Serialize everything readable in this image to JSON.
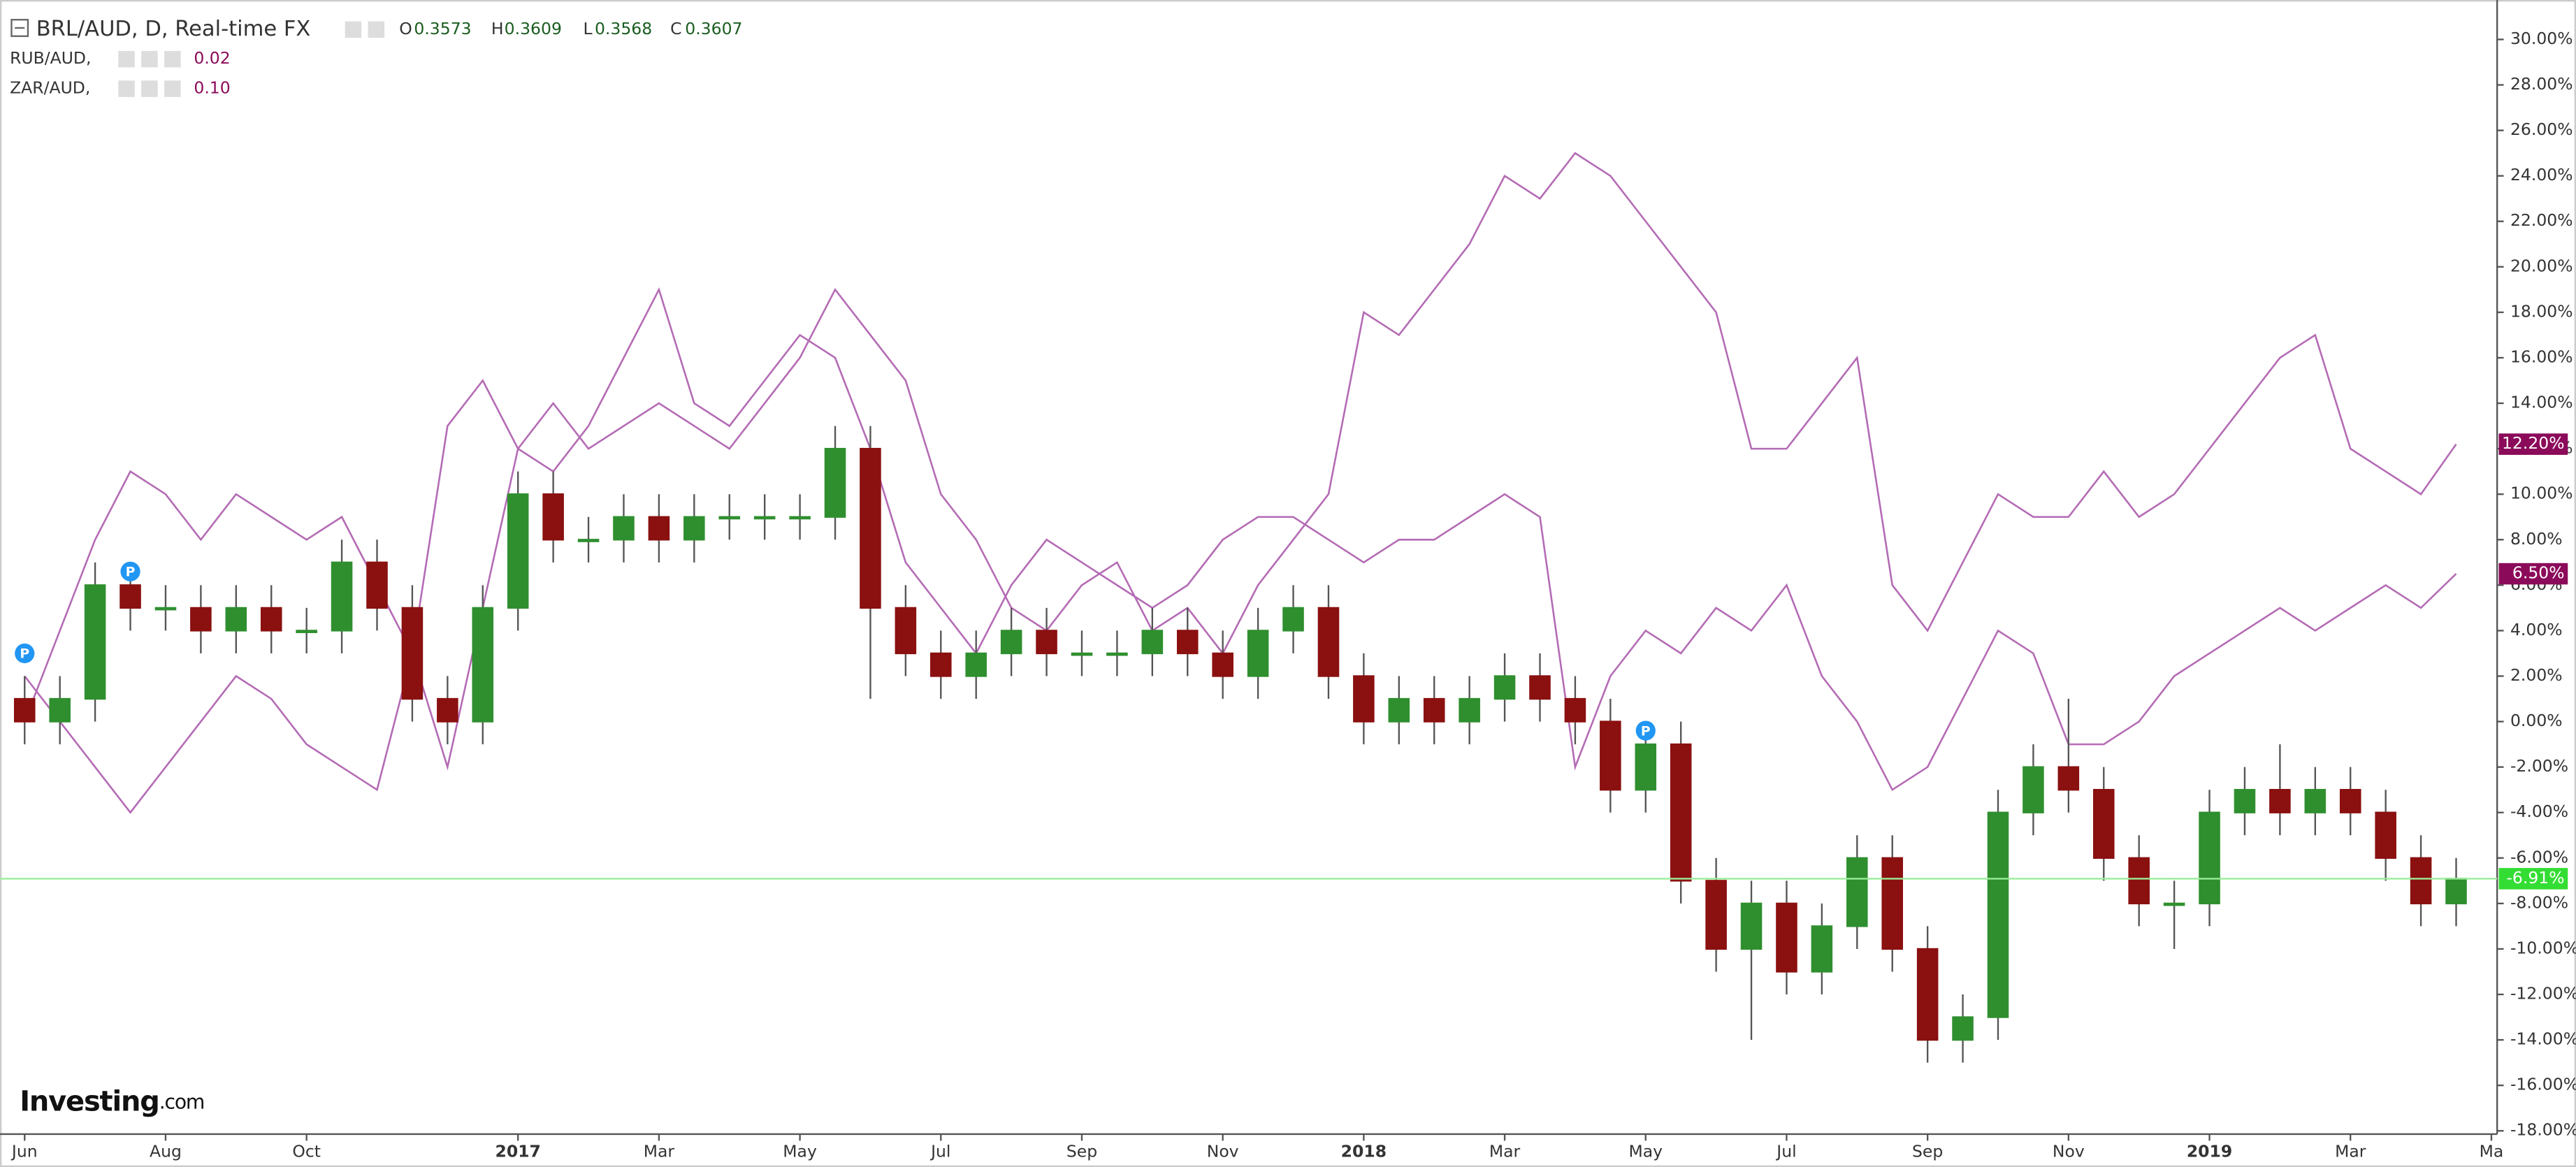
{
  "header": {
    "main": {
      "title": "BRL/AUD, D, Real-time FX",
      "o_label": "O",
      "o": "0.3573",
      "h_label": "H",
      "h": "0.3609",
      "l_label": "L",
      "l": "0.3568",
      "c_label": "C",
      "c": "0.3607"
    },
    "studies": [
      {
        "name": "RUB/AUD,",
        "value": "0.02"
      },
      {
        "name": "ZAR/AUD,",
        "value": "0.10"
      }
    ]
  },
  "logo": {
    "brand": "Investing",
    "suffix": ".com"
  },
  "chart_data": {
    "type": "candlestick",
    "categories": [
      "Jun",
      null,
      null,
      null,
      "Aug",
      null,
      null,
      null,
      "Oct",
      null,
      null,
      null,
      null,
      null,
      "2017",
      null,
      null,
      null,
      "Mar",
      null,
      null,
      null,
      "May",
      null,
      null,
      null,
      "Jul",
      null,
      null,
      null,
      "Sep",
      null,
      null,
      null,
      "Nov",
      null,
      null,
      null,
      "2018",
      null,
      null,
      null,
      "Mar",
      null,
      null,
      null,
      "May",
      null,
      null,
      null,
      "Jul",
      null,
      null,
      null,
      "Sep",
      null,
      null,
      null,
      "Nov",
      null,
      null,
      null,
      "2019",
      null,
      null,
      null,
      "Mar",
      null,
      null,
      null,
      "Ma"
    ],
    "ohlc": {
      "name": "BRL/AUD",
      "up_color": "#2f8f2f",
      "down_color": "#8b1010",
      "wick_color": "#555555",
      "last_value_label": "-6.91%",
      "label_color": "#33dd33",
      "last_line_color": "#99ee99",
      "open": [
        1,
        0,
        1,
        6,
        5,
        5,
        4,
        5,
        4,
        4,
        7,
        5,
        1,
        0,
        5,
        10,
        8,
        8,
        9,
        8,
        9,
        9,
        9,
        9,
        12,
        5,
        3,
        2,
        3,
        4,
        3,
        3,
        3,
        4,
        3,
        2,
        4,
        5,
        2,
        0,
        1,
        0,
        1,
        2,
        1,
        0,
        -3,
        -1,
        -7,
        -10,
        -8,
        -11,
        -9,
        -6,
        -10,
        -14,
        -13,
        -4,
        -2,
        -3,
        -6,
        -8,
        -8,
        -4,
        -3,
        -4,
        -3,
        -4,
        -6,
        -8,
        null
      ],
      "high": [
        2,
        2,
        7,
        7,
        6,
        6,
        6,
        6,
        5,
        8,
        8,
        6,
        2,
        6,
        11,
        11,
        9,
        10,
        10,
        10,
        10,
        10,
        10,
        13,
        13,
        6,
        4,
        4,
        5,
        5,
        4,
        4,
        5,
        5,
        4,
        5,
        6,
        6,
        3,
        2,
        2,
        2,
        3,
        3,
        2,
        1,
        0,
        0,
        -6,
        -7,
        -7,
        -8,
        -5,
        -5,
        -9,
        -12,
        -3,
        -1,
        1,
        -2,
        -5,
        -7,
        -3,
        -2,
        -1,
        -2,
        -2,
        -3,
        -5,
        -6,
        null
      ],
      "low": [
        -1,
        -1,
        0,
        4,
        4,
        3,
        3,
        3,
        3,
        3,
        4,
        0,
        -1,
        -1,
        4,
        7,
        7,
        7,
        7,
        7,
        8,
        8,
        8,
        8,
        1,
        2,
        1,
        1,
        2,
        2,
        2,
        2,
        2,
        2,
        1,
        1,
        3,
        1,
        -1,
        -1,
        -1,
        -1,
        0,
        0,
        -1,
        -4,
        -4,
        -8,
        -11,
        -14,
        -12,
        -12,
        -10,
        -11,
        -15,
        -15,
        -14,
        -5,
        -4,
        -7,
        -9,
        -10,
        -9,
        -5,
        -5,
        -5,
        -5,
        -7,
        -9,
        -9,
        null
      ],
      "close": [
        0,
        1,
        6,
        5,
        5,
        4,
        5,
        4,
        4,
        7,
        5,
        1,
        0,
        5,
        10,
        8,
        8,
        9,
        8,
        9,
        9,
        9,
        9,
        12,
        5,
        3,
        2,
        3,
        4,
        3,
        3,
        3,
        4,
        3,
        2,
        4,
        5,
        2,
        0,
        1,
        0,
        1,
        2,
        1,
        0,
        -3,
        -1,
        -7,
        -10,
        -8,
        -11,
        -9,
        -6,
        -10,
        -14,
        -13,
        -4,
        -2,
        -3,
        -6,
        -8,
        -8,
        -4,
        -3,
        -4,
        -3,
        -4,
        -6,
        -8,
        -6.91,
        null
      ]
    },
    "series": [
      {
        "name": "RUB/AUD",
        "color": "#b46bb4",
        "label_color": "#8b0a5a",
        "last_value_label": "6.50%",
        "values": [
          2,
          0,
          -2,
          -4,
          -2,
          0,
          2,
          1,
          -1,
          -2,
          -3,
          3,
          13,
          15,
          12,
          11,
          13,
          16,
          19,
          14,
          13,
          15,
          17,
          16,
          12,
          7,
          5,
          3,
          6,
          8,
          7,
          6,
          5,
          6,
          8,
          9,
          9,
          8,
          7,
          8,
          8,
          9,
          10,
          9,
          -2,
          2,
          4,
          3,
          5,
          4,
          6,
          2,
          0,
          -3,
          -2,
          1,
          4,
          3,
          -1,
          -1,
          0,
          2,
          3,
          4,
          5,
          4,
          5,
          6,
          5,
          6.5,
          null
        ]
      },
      {
        "name": "ZAR/AUD",
        "color": "#b46bb4",
        "label_color": "#8b0a5a",
        "last_value_label": "12.20%",
        "values": [
          0,
          4,
          8,
          11,
          10,
          8,
          10,
          9,
          8,
          9,
          6,
          3,
          -2,
          5,
          12,
          14,
          12,
          13,
          14,
          13,
          12,
          14,
          16,
          19,
          17,
          15,
          10,
          8,
          5,
          4,
          6,
          7,
          4,
          5,
          3,
          6,
          8,
          10,
          18,
          17,
          19,
          21,
          24,
          23,
          25,
          24,
          22,
          20,
          18,
          12,
          12,
          14,
          16,
          6,
          4,
          7,
          10,
          9,
          9,
          11,
          9,
          10,
          12,
          14,
          16,
          17,
          12,
          11,
          10,
          12.2,
          null
        ]
      }
    ],
    "events": [
      {
        "label": "P",
        "x": 0,
        "y": 3
      },
      {
        "label": "P",
        "x": 3,
        "y": 6.6
      },
      {
        "label": "P",
        "x": 46,
        "y": -0.4
      }
    ],
    "event_color": "#2196f3",
    "ylim": [
      -18,
      30
    ],
    "yticks": [
      {
        "value": 30,
        "label": "30.00%"
      },
      {
        "value": 28,
        "label": "28.00%"
      },
      {
        "value": 26,
        "label": "26.00%"
      },
      {
        "value": 24,
        "label": "24.00%"
      },
      {
        "value": 22,
        "label": "22.00%"
      },
      {
        "value": 20,
        "label": "20.00%"
      },
      {
        "value": 18,
        "label": "18.00%"
      },
      {
        "value": 16,
        "label": "16.00%"
      },
      {
        "value": 14,
        "label": "14.00%"
      },
      {
        "value": 12,
        "label": "12.00%"
      },
      {
        "value": 10,
        "label": "10.00%"
      },
      {
        "value": 8,
        "label": "8.00%"
      },
      {
        "value": 6,
        "label": "6.00%"
      },
      {
        "value": 4,
        "label": "4.00%"
      },
      {
        "value": 2,
        "label": "2.00%"
      },
      {
        "value": 0,
        "label": "0.00%"
      },
      {
        "value": -2,
        "label": "-2.00%"
      },
      {
        "value": -4,
        "label": "-4.00%"
      },
      {
        "value": -6,
        "label": "-6.00%"
      },
      {
        "value": -8,
        "label": "-8.00%"
      },
      {
        "value": -10,
        "label": "-10.00%"
      },
      {
        "value": -12,
        "label": "-12.00%"
      },
      {
        "value": -14,
        "label": "-14.00%"
      },
      {
        "value": -16,
        "label": "-16.00%"
      },
      {
        "value": -18,
        "label": "-18.00%"
      }
    ]
  }
}
